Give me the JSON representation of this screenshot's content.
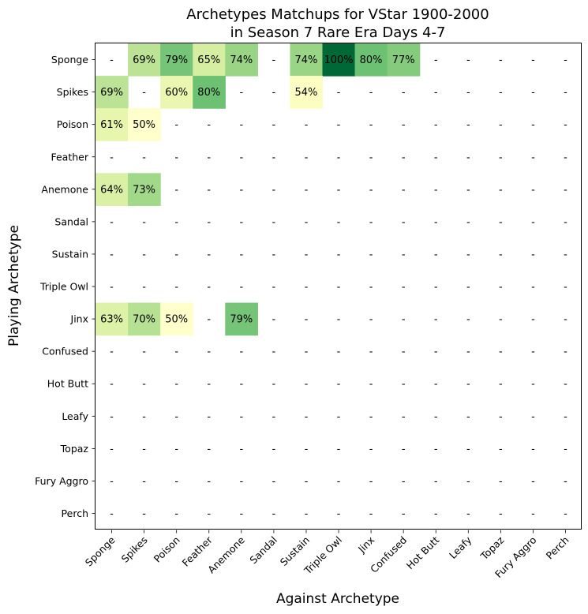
{
  "chart_data": {
    "type": "heatmap",
    "title_lines": [
      "Archetypes Matchups for VStar 1900-2000",
      "in Season 7 Rare Era Days 4-7"
    ],
    "xlabel": "Against Archetype",
    "ylabel": "Playing Archetype",
    "rows": [
      "Sponge",
      "Spikes",
      "Poison",
      "Feather",
      "Anemone",
      "Sandal",
      "Sustain",
      "Triple Owl",
      "Jinx",
      "Confused",
      "Hot Butt",
      "Leafy",
      "Topaz",
      "Fury Aggro",
      "Perch"
    ],
    "cols": [
      "Sponge",
      "Spikes",
      "Poison",
      "Feather",
      "Anemone",
      "Sandal",
      "Sustain",
      "Triple Owl",
      "Jinx",
      "Confused",
      "Hot Butt",
      "Leafy",
      "Topaz",
      "Fury Aggro",
      "Perch"
    ],
    "values": [
      [
        null,
        69,
        79,
        65,
        74,
        null,
        74,
        100,
        80,
        77,
        null,
        null,
        null,
        null,
        null
      ],
      [
        69,
        null,
        60,
        80,
        null,
        null,
        54,
        null,
        null,
        null,
        null,
        null,
        null,
        null,
        null
      ],
      [
        61,
        50,
        null,
        null,
        null,
        null,
        null,
        null,
        null,
        null,
        null,
        null,
        null,
        null,
        null
      ],
      [
        null,
        null,
        null,
        null,
        null,
        null,
        null,
        null,
        null,
        null,
        null,
        null,
        null,
        null,
        null
      ],
      [
        64,
        73,
        null,
        null,
        null,
        null,
        null,
        null,
        null,
        null,
        null,
        null,
        null,
        null,
        null
      ],
      [
        null,
        null,
        null,
        null,
        null,
        null,
        null,
        null,
        null,
        null,
        null,
        null,
        null,
        null,
        null
      ],
      [
        null,
        null,
        null,
        null,
        null,
        null,
        null,
        null,
        null,
        null,
        null,
        null,
        null,
        null,
        null
      ],
      [
        null,
        null,
        null,
        null,
        null,
        null,
        null,
        null,
        null,
        null,
        null,
        null,
        null,
        null,
        null
      ],
      [
        63,
        70,
        50,
        null,
        79,
        null,
        null,
        null,
        null,
        null,
        null,
        null,
        null,
        null,
        null
      ],
      [
        null,
        null,
        null,
        null,
        null,
        null,
        null,
        null,
        null,
        null,
        null,
        null,
        null,
        null,
        null
      ],
      [
        null,
        null,
        null,
        null,
        null,
        null,
        null,
        null,
        null,
        null,
        null,
        null,
        null,
        null,
        null
      ],
      [
        null,
        null,
        null,
        null,
        null,
        null,
        null,
        null,
        null,
        null,
        null,
        null,
        null,
        null,
        null
      ],
      [
        null,
        null,
        null,
        null,
        null,
        null,
        null,
        null,
        null,
        null,
        null,
        null,
        null,
        null,
        null
      ],
      [
        null,
        null,
        null,
        null,
        null,
        null,
        null,
        null,
        null,
        null,
        null,
        null,
        null,
        null,
        null
      ],
      [
        null,
        null,
        null,
        null,
        null,
        null,
        null,
        null,
        null,
        null,
        null,
        null,
        null,
        null,
        null
      ]
    ],
    "labels": [
      [
        "-",
        "69%",
        "79%",
        "65%",
        "74%",
        "-",
        "74%",
        "100%",
        "80%",
        "77%",
        "-",
        "-",
        "-",
        "-",
        "-"
      ],
      [
        "69%",
        "-",
        "60%",
        "80%",
        "-",
        "-",
        "54%",
        "-",
        "-",
        "-",
        "-",
        "-",
        "-",
        "-",
        "-"
      ],
      [
        "61%",
        "50%",
        "-",
        "-",
        "-",
        "-",
        "-",
        "-",
        "-",
        "-",
        "-",
        "-",
        "-",
        "-",
        "-"
      ],
      [
        "-",
        "-",
        "-",
        "-",
        "-",
        "-",
        "-",
        "-",
        "-",
        "-",
        "-",
        "-",
        "-",
        "-",
        "-"
      ],
      [
        "64%",
        "73%",
        "-",
        "-",
        "-",
        "-",
        "-",
        "-",
        "-",
        "-",
        "-",
        "-",
        "-",
        "-",
        "-"
      ],
      [
        "-",
        "-",
        "-",
        "-",
        "-",
        "-",
        "-",
        "-",
        "-",
        "-",
        "-",
        "-",
        "-",
        "-",
        "-"
      ],
      [
        "-",
        "-",
        "-",
        "-",
        "-",
        "-",
        "-",
        "-",
        "-",
        "-",
        "-",
        "-",
        "-",
        "-",
        "-"
      ],
      [
        "-",
        "-",
        "-",
        "-",
        "-",
        "-",
        "-",
        "-",
        "-",
        "-",
        "-",
        "-",
        "-",
        "-",
        "-"
      ],
      [
        "63%",
        "70%",
        "50%",
        "-",
        "79%",
        "-",
        "-",
        "-",
        "-",
        "-",
        "-",
        "-",
        "-",
        "-",
        "-"
      ],
      [
        "-",
        "-",
        "-",
        "-",
        "-",
        "-",
        "-",
        "-",
        "-",
        "-",
        "-",
        "-",
        "-",
        "-",
        "-"
      ],
      [
        "-",
        "-",
        "-",
        "-",
        "-",
        "-",
        "-",
        "-",
        "-",
        "-",
        "-",
        "-",
        "-",
        "-",
        "-"
      ],
      [
        "-",
        "-",
        "-",
        "-",
        "-",
        "-",
        "-",
        "-",
        "-",
        "-",
        "-",
        "-",
        "-",
        "-",
        "-"
      ],
      [
        "-",
        "-",
        "-",
        "-",
        "-",
        "-",
        "-",
        "-",
        "-",
        "-",
        "-",
        "-",
        "-",
        "-",
        "-"
      ],
      [
        "-",
        "-",
        "-",
        "-",
        "-",
        "-",
        "-",
        "-",
        "-",
        "-",
        "-",
        "-",
        "-",
        "-",
        "-"
      ],
      [
        "-",
        "-",
        "-",
        "-",
        "-",
        "-",
        "-",
        "-",
        "-",
        "-",
        "-",
        "-",
        "-",
        "-",
        "-"
      ]
    ],
    "color_scale": {
      "name": "YlGn",
      "range": [
        50,
        100
      ],
      "stops": [
        "#ffffcc",
        "#f7fcb9",
        "#d9f0a3",
        "#addd8e",
        "#78c679",
        "#41ab5d",
        "#238443",
        "#006837"
      ]
    }
  }
}
